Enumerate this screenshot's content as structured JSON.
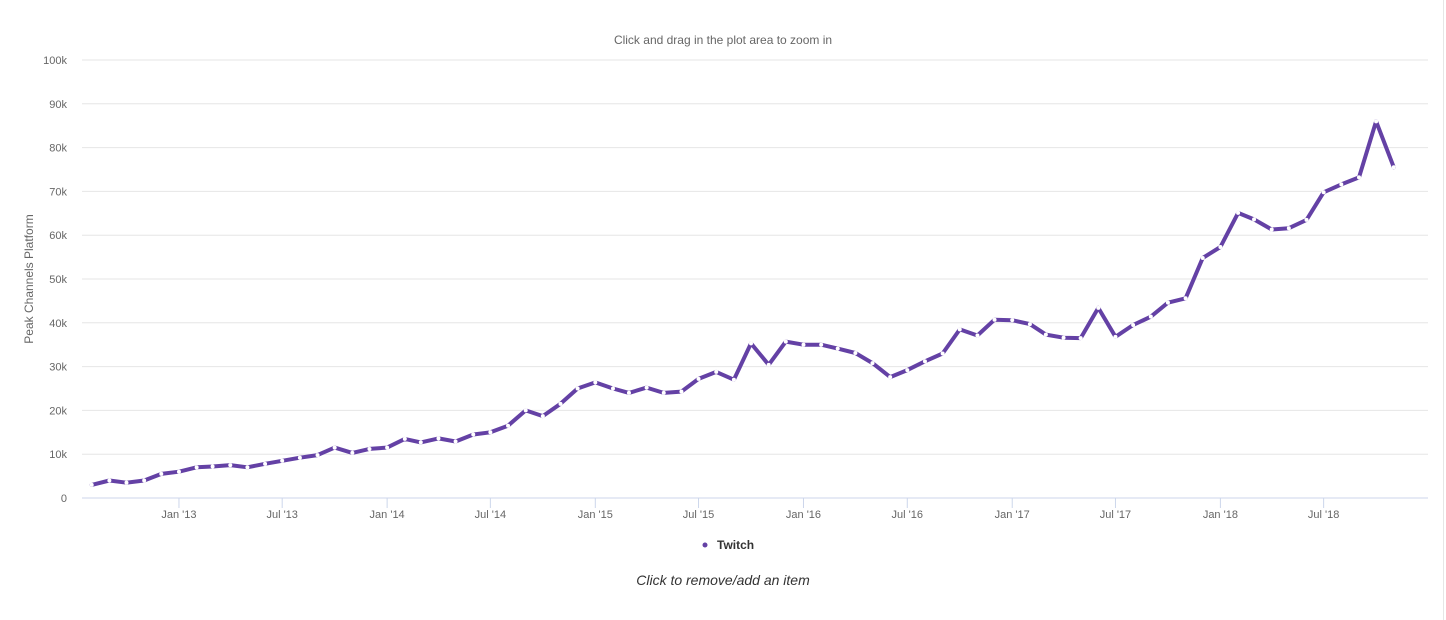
{
  "subtitle": "Click and drag in the plot area to zoom in",
  "footer_note": "Click to remove/add an item",
  "colors": {
    "series": "#6441a5",
    "grid": "#e6e6e6",
    "axis_line": "#ccd6eb",
    "tick_label": "#666666"
  },
  "chart_data": {
    "type": "line",
    "title": "",
    "xlabel": "",
    "ylabel": "Peak Channels Platform",
    "ylim": [
      0,
      100000
    ],
    "yticks": [
      0,
      10000,
      20000,
      30000,
      40000,
      50000,
      60000,
      70000,
      80000,
      90000,
      100000
    ],
    "ytick_labels": [
      "0",
      "10k",
      "20k",
      "30k",
      "40k",
      "50k",
      "60k",
      "70k",
      "80k",
      "90k",
      "100k"
    ],
    "xlim": [
      "2012-07-15",
      "2018-12-31"
    ],
    "xticks": [
      "2013-01-01",
      "2013-07-01",
      "2014-01-01",
      "2014-07-01",
      "2015-01-01",
      "2015-07-01",
      "2016-01-01",
      "2016-07-01",
      "2017-01-01",
      "2017-07-01",
      "2018-01-01",
      "2018-07-01"
    ],
    "xtick_labels": [
      "Jan '13",
      "Jul '13",
      "Jan '14",
      "Jul '14",
      "Jan '15",
      "Jul '15",
      "Jan '16",
      "Jul '16",
      "Jan '17",
      "Jul '17",
      "Jan '18",
      "Jul '18"
    ],
    "grid": true,
    "legend": "bottom-center",
    "series": [
      {
        "name": "Twitch",
        "x": [
          "2012-08-01",
          "2012-09-01",
          "2012-10-01",
          "2012-11-01",
          "2012-12-01",
          "2013-01-01",
          "2013-02-01",
          "2013-03-01",
          "2013-04-01",
          "2013-05-01",
          "2013-06-01",
          "2013-07-01",
          "2013-08-01",
          "2013-09-01",
          "2013-10-01",
          "2013-11-01",
          "2013-12-01",
          "2014-01-01",
          "2014-02-01",
          "2014-03-01",
          "2014-04-01",
          "2014-05-01",
          "2014-06-01",
          "2014-07-01",
          "2014-08-01",
          "2014-09-01",
          "2014-10-01",
          "2014-11-01",
          "2014-12-01",
          "2015-01-01",
          "2015-02-01",
          "2015-03-01",
          "2015-04-01",
          "2015-05-01",
          "2015-06-01",
          "2015-07-01",
          "2015-08-01",
          "2015-09-01",
          "2015-10-01",
          "2015-11-01",
          "2015-12-01",
          "2016-01-01",
          "2016-02-01",
          "2016-03-01",
          "2016-04-01",
          "2016-05-01",
          "2016-06-01",
          "2016-07-01",
          "2016-08-01",
          "2016-09-01",
          "2016-10-01",
          "2016-11-01",
          "2016-12-01",
          "2017-01-01",
          "2017-02-01",
          "2017-03-01",
          "2017-04-01",
          "2017-05-01",
          "2017-06-01",
          "2017-07-01",
          "2017-08-01",
          "2017-09-01",
          "2017-10-01",
          "2017-11-01",
          "2017-12-01",
          "2018-01-01",
          "2018-02-01",
          "2018-03-01",
          "2018-04-01",
          "2018-05-01",
          "2018-06-01",
          "2018-07-01",
          "2018-08-01",
          "2018-09-01",
          "2018-10-01",
          "2018-11-01",
          "2018-12-01"
        ],
        "values": [
          3000,
          4000,
          3500,
          4000,
          5500,
          6000,
          7000,
          7200,
          7500,
          7000,
          7800,
          8500,
          9200,
          9800,
          11500,
          10300,
          11200,
          11500,
          13500,
          12700,
          13600,
          12900,
          14500,
          15000,
          16500,
          20000,
          18700,
          21500,
          25000,
          26400,
          25000,
          24000,
          25200,
          24000,
          24300,
          27200,
          28800,
          27000,
          35300,
          30400,
          35700,
          35000,
          35000,
          34100,
          33100,
          30800,
          27600,
          29200,
          31200,
          33000,
          38500,
          37100,
          40700,
          40600,
          39700,
          37300,
          36600,
          36500,
          43400,
          36800,
          39500,
          41400,
          44600,
          45600,
          54800,
          57300,
          65100,
          63600,
          61300,
          61600,
          63500,
          69800,
          71600,
          73200,
          86000,
          75500,
          null
        ]
      }
    ]
  }
}
